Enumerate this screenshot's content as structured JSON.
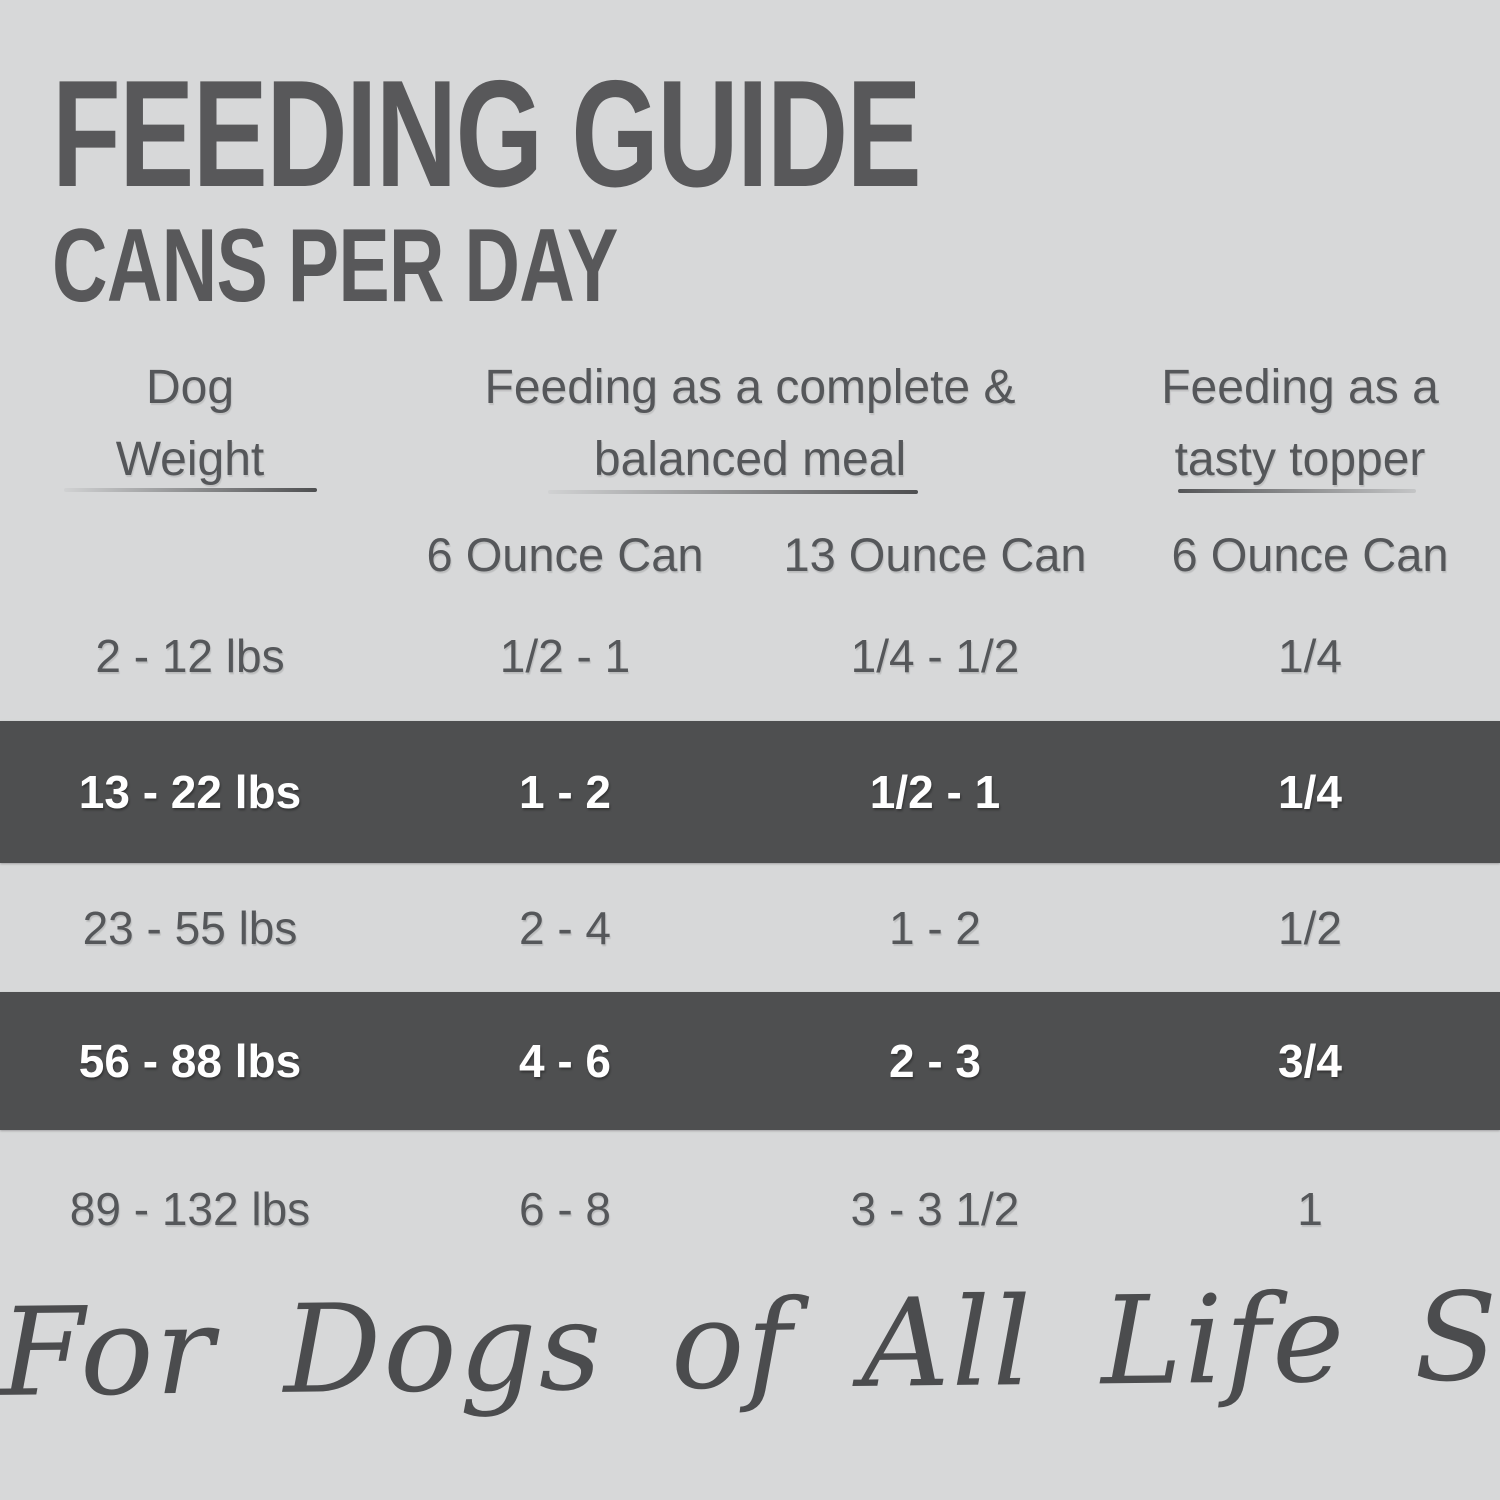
{
  "page": {
    "title": "FEEDING GUIDE",
    "subtitle": "CANS PER DAY",
    "footer_note": "For Dogs of All Life Stages",
    "colors": {
      "background": "#d7d8d9",
      "highlight_band": "#4e4f50",
      "text": "#55575a",
      "band_text": "#ffffff"
    }
  },
  "table": {
    "column_groups": [
      {
        "label": "Dog Weight",
        "lines": [
          "Dog",
          "Weight"
        ]
      },
      {
        "label": "Feeding as a complete & balanced meal",
        "lines": [
          "Feeding as a complete &",
          "balanced meal"
        ]
      },
      {
        "label": "Feeding as a tasty topper",
        "lines": [
          "Feeding as a",
          "tasty topper"
        ]
      }
    ],
    "subheaders": [
      "6 Ounce Can",
      "13 Ounce Can",
      "6 Ounce Can"
    ],
    "rows": [
      {
        "weight": "2 - 12 lbs",
        "complete_6oz": "1/2 - 1",
        "complete_13oz": "1/4 - 1/2",
        "topper_6oz": "1/4",
        "highlighted": false
      },
      {
        "weight": "13 - 22 lbs",
        "complete_6oz": "1 - 2",
        "complete_13oz": "1/2 - 1",
        "topper_6oz": "1/4",
        "highlighted": true
      },
      {
        "weight": "23 - 55 lbs",
        "complete_6oz": "2 - 4",
        "complete_13oz": "1 - 2",
        "topper_6oz": "1/2",
        "highlighted": false
      },
      {
        "weight": "56 - 88 lbs",
        "complete_6oz": "4 - 6",
        "complete_13oz": "2 - 3",
        "topper_6oz": "3/4",
        "highlighted": true
      },
      {
        "weight": "89 - 132 lbs",
        "complete_6oz": "6 - 8",
        "complete_13oz": "3 - 3 1/2",
        "topper_6oz": "1",
        "highlighted": false
      }
    ]
  }
}
